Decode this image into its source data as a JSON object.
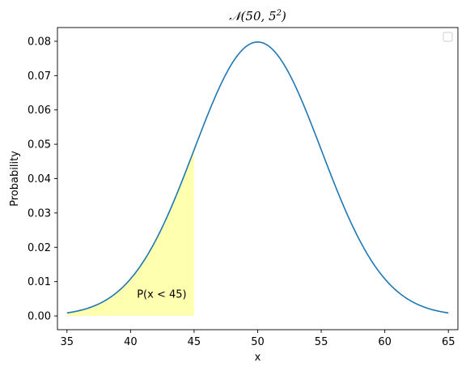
{
  "chart_data": {
    "type": "line",
    "title_main": "𝒩(50, 5",
    "title_exp": "2",
    "title_close": ")",
    "xlabel": "x",
    "ylabel": "Probability",
    "xlim": [
      34.25,
      65.75
    ],
    "ylim": [
      -0.004,
      0.084
    ],
    "xticks": [
      35,
      40,
      45,
      50,
      55,
      60,
      65
    ],
    "yticks": [
      0.0,
      0.01,
      0.02,
      0.03,
      0.04,
      0.05,
      0.06,
      0.07,
      0.08
    ],
    "ytick_labels": [
      "0.00",
      "0.01",
      "0.02",
      "0.03",
      "0.04",
      "0.05",
      "0.06",
      "0.07",
      "0.08"
    ],
    "distribution": {
      "mean": 50,
      "sd": 5
    },
    "x_range": [
      35,
      65
    ],
    "line_color": "#1f77b4",
    "shaded_region": {
      "x_from": 35,
      "x_to": 45,
      "color": "#ffffb0"
    },
    "annotation": {
      "text": "P(x < 45)",
      "x": 40.5,
      "y": 0.0065
    },
    "legend": {
      "placement": "upper right",
      "entries": []
    },
    "grid": false
  }
}
